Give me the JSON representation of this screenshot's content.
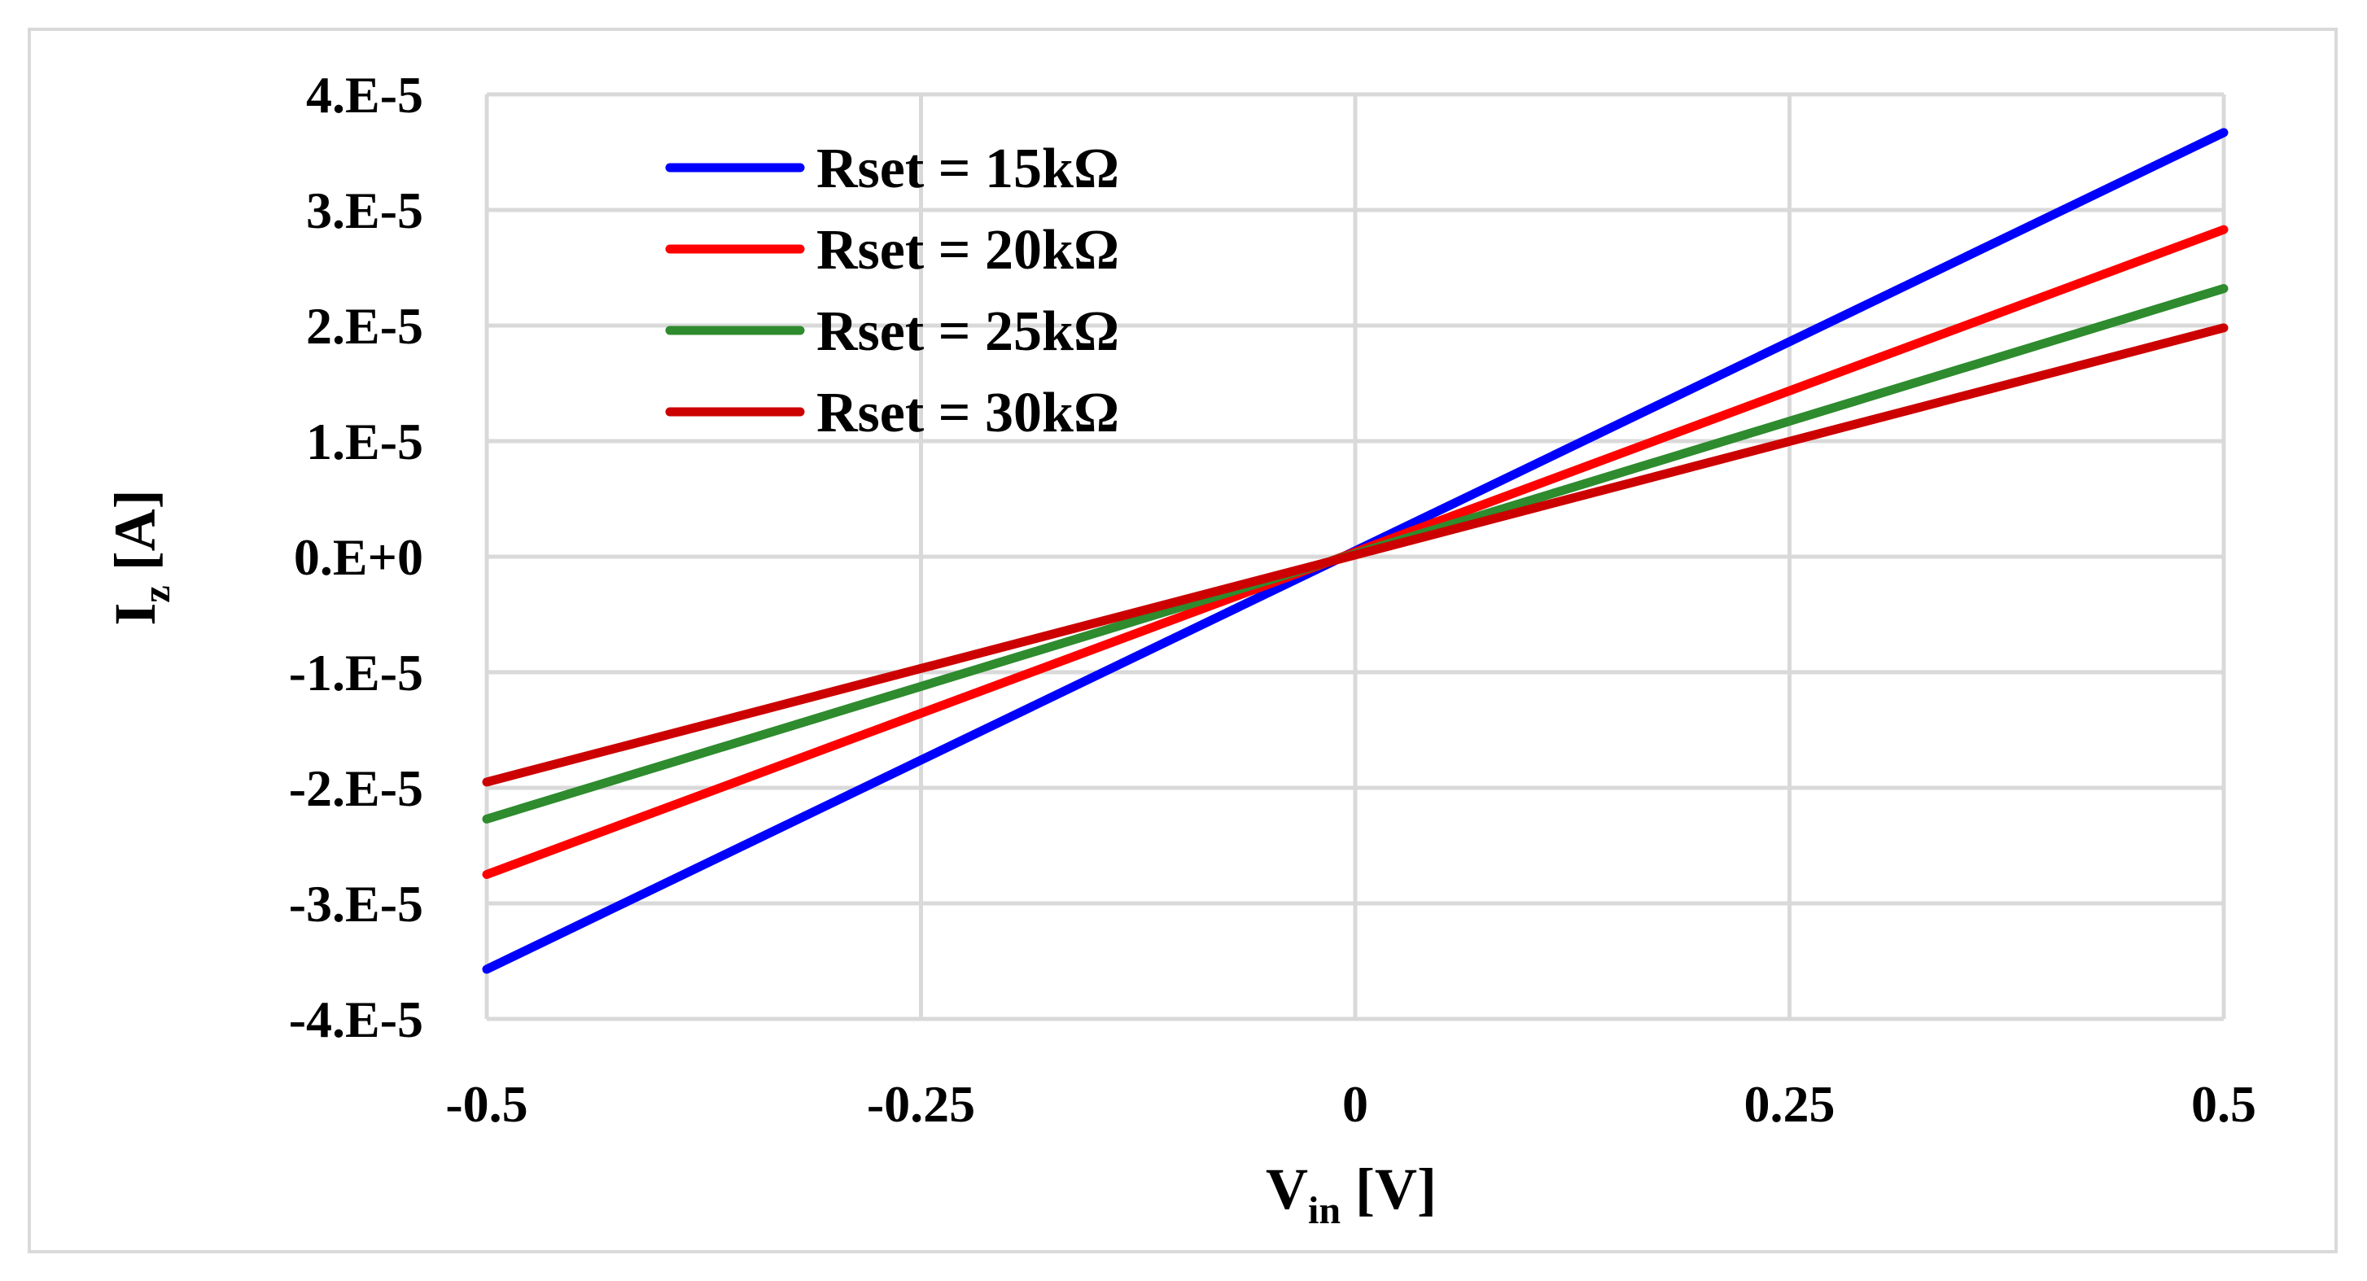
{
  "chart_data": {
    "type": "line",
    "title": "",
    "xlabel": {
      "main": "V",
      "sub": "in",
      "unit": " [V]"
    },
    "ylabel": {
      "main": "I",
      "sub": "z",
      "unit": " [A]"
    },
    "xlim": [
      -0.5,
      0.5
    ],
    "ylim": [
      -4e-05,
      4e-05
    ],
    "x_ticks": [
      -0.5,
      -0.25,
      0,
      0.25,
      0.5
    ],
    "x_tick_labels": [
      "-0.5",
      "-0.25",
      "0",
      "0.25",
      "0.5"
    ],
    "y_ticks": [
      4e-05,
      3e-05,
      2e-05,
      1e-05,
      0,
      -1e-05,
      -2e-05,
      -3e-05,
      -4e-05
    ],
    "y_tick_labels": [
      "4.E-5",
      "3.E-5",
      "2.E-5",
      "1.E-5",
      "0.E+0",
      "-1.E-5",
      "-2.E-5",
      "-3.E-5",
      "-4.E-5"
    ],
    "grid": true,
    "legend_position": "top-left",
    "series": [
      {
        "name": "Rset = 15kΩ",
        "color": "#0000ff",
        "x": [
          -0.5,
          0.5
        ],
        "y": [
          -3.57e-05,
          3.67e-05
        ]
      },
      {
        "name": "Rset = 20kΩ",
        "color": "#ff0000",
        "x": [
          -0.5,
          0.5
        ],
        "y": [
          -2.75e-05,
          2.83e-05
        ]
      },
      {
        "name": "Rset = 25kΩ",
        "color": "#2e8b2e",
        "x": [
          -0.5,
          0.5
        ],
        "y": [
          -2.27e-05,
          2.32e-05
        ]
      },
      {
        "name": "Rset = 30kΩ",
        "color": "#cc0000",
        "x": [
          -0.5,
          0.5
        ],
        "y": [
          -1.95e-05,
          1.98e-05
        ]
      }
    ]
  }
}
